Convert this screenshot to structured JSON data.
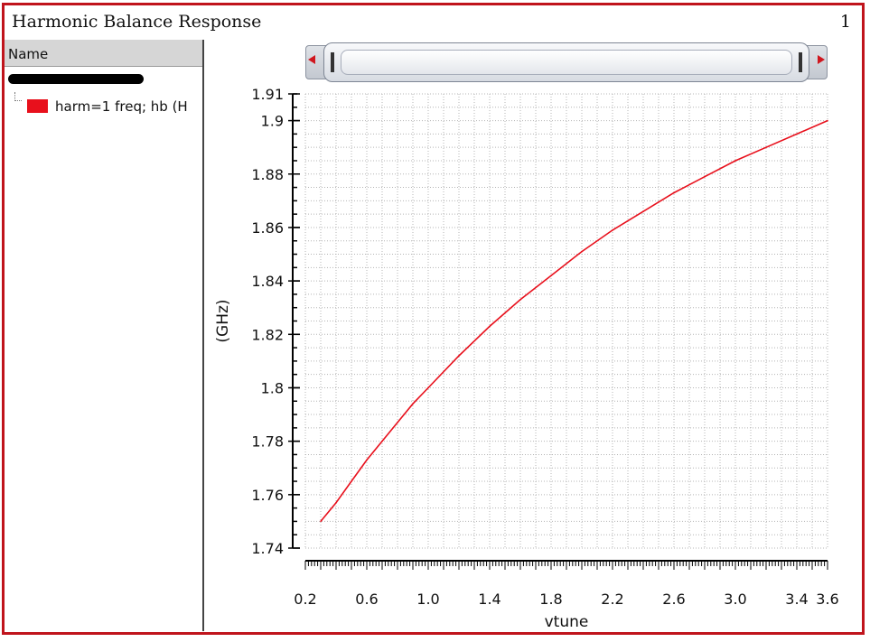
{
  "window": {
    "title": "Harmonic Balance Response",
    "subwindow_number": "1"
  },
  "legend": {
    "header": "Name",
    "items": [
      {
        "label": "harm=1 freq; hb (H",
        "color": "#e8101c",
        "swatch_icon": "red-rectangle-icon"
      }
    ]
  },
  "scrollbar": {
    "left_icon": "red-left-arrow-icon",
    "right_icon": "red-right-arrow-icon",
    "thumb_fraction": 1.0
  },
  "chart_data": {
    "type": "line",
    "title": "",
    "xlabel": "vtune",
    "ylabel": "(GHz)",
    "xlim": [
      0.2,
      3.6
    ],
    "ylim": [
      1.74,
      1.91
    ],
    "x_ticks": [
      0.2,
      0.6,
      1.0,
      1.4,
      1.8,
      2.2,
      2.6,
      3.0,
      3.4,
      3.6
    ],
    "x_tick_labels": [
      "0.2",
      "0.6",
      "1.0",
      "1.4",
      "1.8",
      "2.2",
      "2.6",
      "3.0",
      "3.4",
      "3.6"
    ],
    "y_ticks": [
      1.74,
      1.76,
      1.78,
      1.8,
      1.82,
      1.84,
      1.86,
      1.88,
      1.9,
      1.91
    ],
    "y_tick_labels": [
      "1.74",
      "1.76",
      "1.78",
      "1.8",
      "1.82",
      "1.84",
      "1.86",
      "1.88",
      "1.9",
      "1.91"
    ],
    "grid": true,
    "series": [
      {
        "color": "#e8101c",
        "x": [
          0.3,
          0.4,
          0.5,
          0.6,
          0.7,
          0.8,
          0.9,
          1.0,
          1.2,
          1.4,
          1.6,
          1.8,
          2.0,
          2.2,
          2.4,
          2.6,
          2.8,
          3.0,
          3.2,
          3.4,
          3.6
        ],
        "y": [
          1.75,
          1.757,
          1.765,
          1.773,
          1.78,
          1.787,
          1.794,
          1.8,
          1.812,
          1.823,
          1.833,
          1.842,
          1.851,
          1.859,
          1.866,
          1.873,
          1.879,
          1.885,
          1.89,
          1.895,
          1.9
        ]
      }
    ]
  }
}
